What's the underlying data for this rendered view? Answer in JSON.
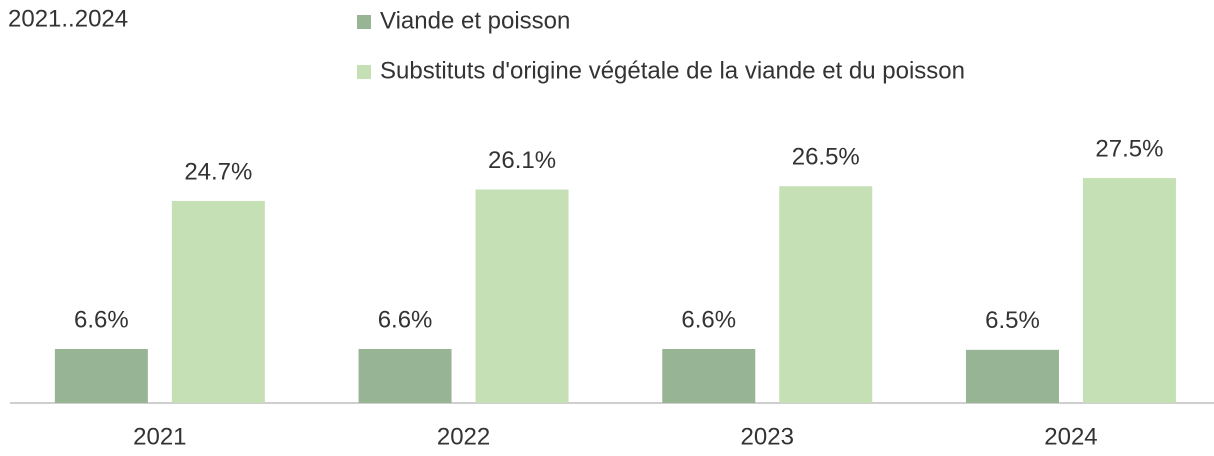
{
  "chart_data": {
    "type": "bar",
    "title": "2021..2024",
    "categories": [
      "2021",
      "2022",
      "2023",
      "2024"
    ],
    "series": [
      {
        "name": "Viande et poisson",
        "color": "#97b594",
        "values": [
          6.6,
          6.6,
          6.6,
          6.5
        ],
        "value_labels": [
          "6.6%",
          "6.6%",
          "6.6%",
          "6.5%"
        ]
      },
      {
        "name": "Substituts d'origine végétale de la viande et du poisson",
        "color": "#c5e0b4",
        "values": [
          24.7,
          26.1,
          26.5,
          27.5
        ],
        "value_labels": [
          "24.7%",
          "26.1%",
          "26.5%",
          "27.5%"
        ]
      }
    ]
  }
}
